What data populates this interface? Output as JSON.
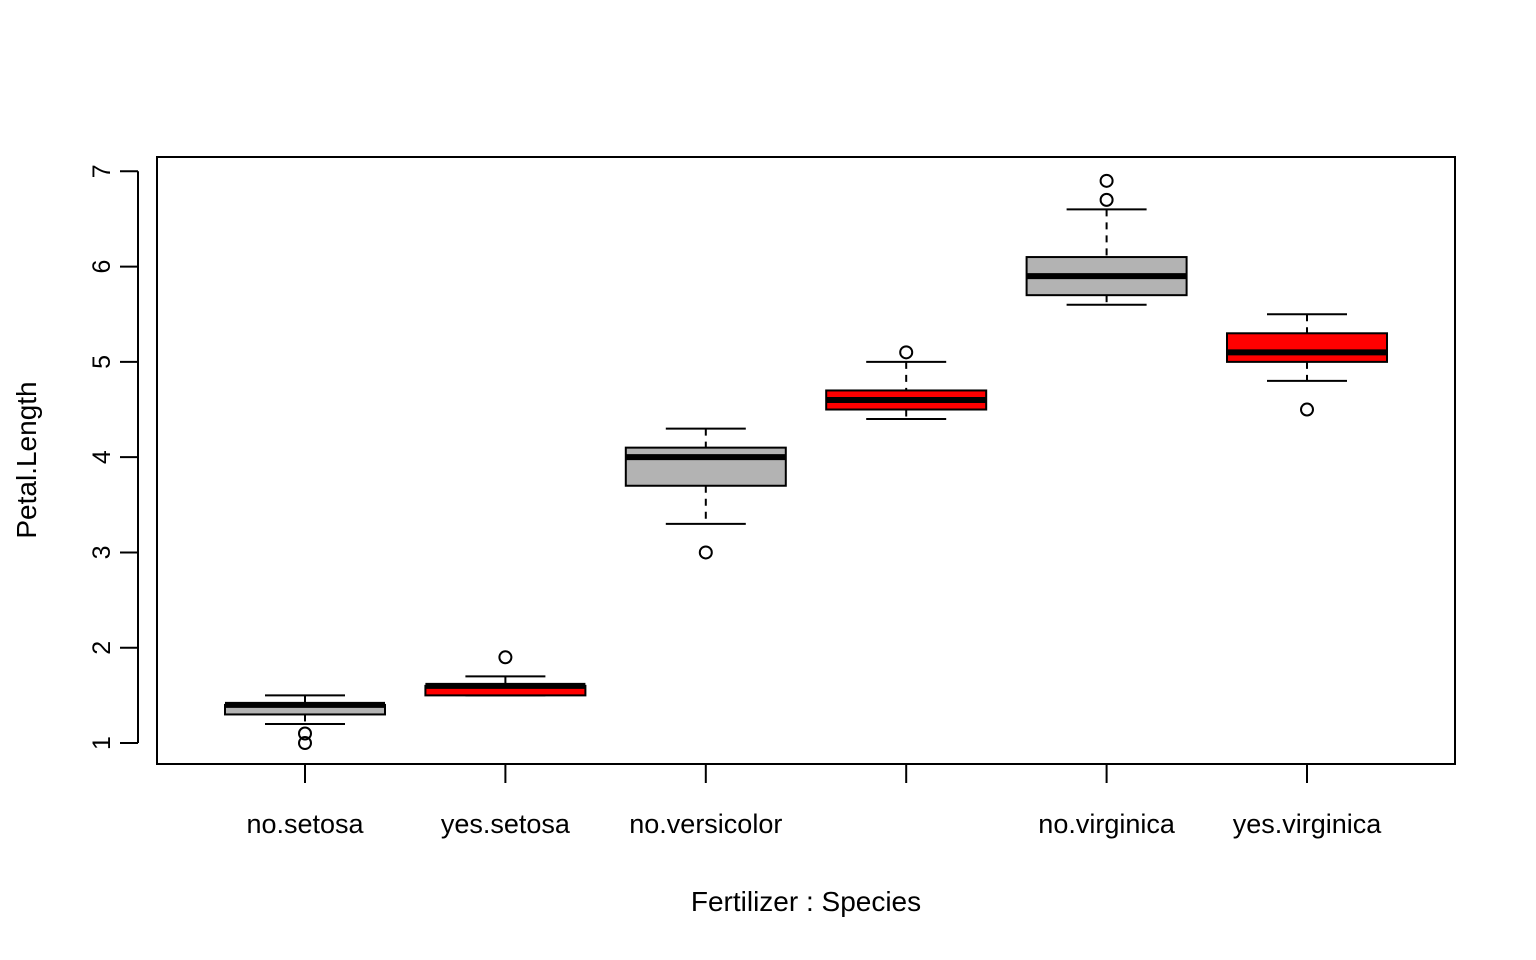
{
  "chart_data": {
    "type": "box",
    "title": "",
    "xlabel": "Fertilizer : Species",
    "ylabel": "Petal.Length",
    "ylim": [
      0.78,
      7.15
    ],
    "yticks": [
      1,
      2,
      3,
      4,
      5,
      6,
      7
    ],
    "categories": [
      "no.setosa",
      "yes.setosa",
      "no.versicolor",
      "",
      "no.virginica",
      "yes.virginica"
    ],
    "colors": {
      "no": "#b3b3b3",
      "yes": "#ff0000"
    },
    "boxes": [
      {
        "category": "no.setosa",
        "fill": "no",
        "whisker_low": 1.2,
        "q1": 1.3,
        "median": 1.4,
        "q3": 1.4,
        "whisker_high": 1.5,
        "outliers": [
          1.0,
          1.1
        ]
      },
      {
        "category": "yes.setosa",
        "fill": "yes",
        "whisker_low": 1.5,
        "q1": 1.5,
        "median": 1.6,
        "q3": 1.6,
        "whisker_high": 1.7,
        "outliers": [
          1.9
        ]
      },
      {
        "category": "no.versicolor",
        "fill": "no",
        "whisker_low": 3.3,
        "q1": 3.7,
        "median": 4.0,
        "q3": 4.1,
        "whisker_high": 4.3,
        "outliers": [
          3.0
        ]
      },
      {
        "category": "",
        "fill": "yes",
        "whisker_low": 4.4,
        "q1": 4.5,
        "median": 4.6,
        "q3": 4.7,
        "whisker_high": 5.0,
        "outliers": [
          5.1
        ]
      },
      {
        "category": "no.virginica",
        "fill": "no",
        "whisker_low": 5.6,
        "q1": 5.7,
        "median": 5.9,
        "q3": 6.1,
        "whisker_high": 6.6,
        "outliers": [
          6.7,
          6.9
        ]
      },
      {
        "category": "yes.virginica",
        "fill": "yes",
        "whisker_low": 4.8,
        "q1": 5.0,
        "median": 5.1,
        "q3": 5.3,
        "whisker_high": 5.5,
        "outliers": [
          4.5
        ]
      }
    ]
  }
}
